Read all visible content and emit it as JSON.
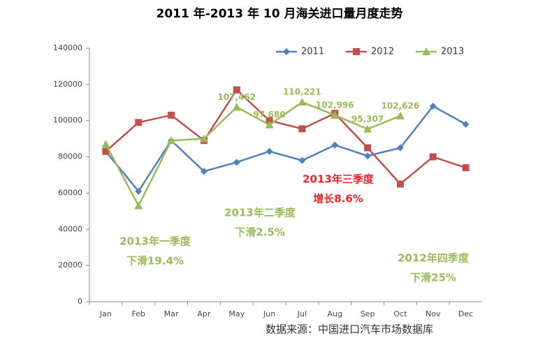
{
  "chart_data": {
    "type": "line",
    "title": "2011 年-2013 年 10 月海关进口量月度走势",
    "categories": [
      "Jan",
      "Feb",
      "Mar",
      "Apr",
      "May",
      "Jun",
      "Jul",
      "Aug",
      "Sep",
      "Oct",
      "Nov",
      "Dec"
    ],
    "series": [
      {
        "name": "2011",
        "color": "#4f81bd",
        "marker": "diamond",
        "values": [
          83000,
          61000,
          89000,
          72000,
          77000,
          83000,
          78000,
          86500,
          80500,
          85000,
          108000,
          98000
        ]
      },
      {
        "name": "2012",
        "color": "#c0504d",
        "marker": "square",
        "values": [
          83000,
          99000,
          103000,
          89000,
          117000,
          100000,
          95500,
          104000,
          85000,
          65000,
          80000,
          74000
        ]
      },
      {
        "name": "2013",
        "color": "#9bbb59",
        "marker": "triangle",
        "values": [
          87000,
          53000,
          89000,
          90000,
          107462,
          97680,
          110221,
          102996,
          95307,
          102626,
          null,
          null
        ],
        "value_labels": [
          null,
          null,
          null,
          null,
          "107,462",
          "97,680",
          "110,221",
          "102,996",
          "95,307",
          "102,626",
          null,
          null
        ]
      }
    ],
    "ylim": [
      0,
      140000
    ],
    "yticks": [
      0,
      20000,
      40000,
      60000,
      80000,
      100000,
      120000,
      140000
    ],
    "legend": "top-right",
    "annotations": [
      {
        "lines": [
          "2013年一季度",
          "下滑19.4%"
        ],
        "color": "#9bbb59"
      },
      {
        "lines": [
          "2013年二季度",
          "下滑2.5%"
        ],
        "color": "#9bbb59"
      },
      {
        "lines": [
          "2013年三季度",
          "增长8.6%"
        ],
        "color": "#e8262a"
      },
      {
        "lines": [
          "2012年四季度",
          "下滑25%"
        ],
        "color": "#9bbb59"
      }
    ],
    "source": "数据来源：中国进口汽车市场数据库"
  }
}
